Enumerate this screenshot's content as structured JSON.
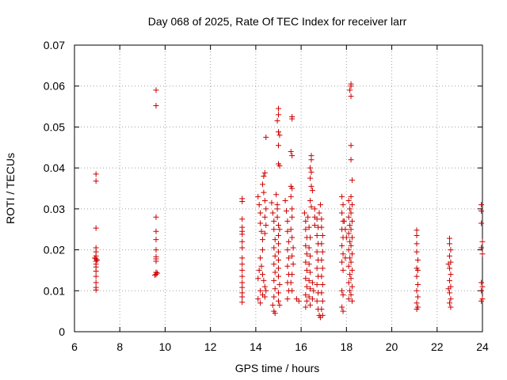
{
  "chart_data": {
    "type": "scatter",
    "title": "Day 068 of 2025, Rate Of TEC Index for receiver larr",
    "xlabel": "GPS time / hours",
    "ylabel": "ROTI / TECUs",
    "xlim": [
      6,
      24
    ],
    "ylim": [
      0,
      0.07
    ],
    "xticks": [
      6,
      8,
      10,
      12,
      14,
      16,
      18,
      20,
      22,
      24
    ],
    "yticks": [
      0,
      0.01,
      0.02,
      0.03,
      0.04,
      0.05,
      0.06,
      0.07
    ],
    "xtick_labels": [
      "6",
      "8",
      "10",
      "12",
      "14",
      "16",
      "18",
      "20",
      "22",
      "24"
    ],
    "ytick_labels": [
      "0",
      "0.01",
      "0.02",
      "0.03",
      "0.04",
      "0.05",
      "0.06",
      "0.07"
    ],
    "grid": true,
    "marker": "plus",
    "color": "#cc0000",
    "points": [
      [
        6.95,
        0.0385
      ],
      [
        6.95,
        0.0368
      ],
      [
        6.95,
        0.0253
      ],
      [
        6.95,
        0.0205
      ],
      [
        6.95,
        0.0195
      ],
      [
        6.95,
        0.0185
      ],
      [
        6.95,
        0.0178
      ],
      [
        6.95,
        0.0172
      ],
      [
        6.95,
        0.0165
      ],
      [
        6.95,
        0.0158
      ],
      [
        6.95,
        0.0148
      ],
      [
        6.95,
        0.0135
      ],
      [
        6.95,
        0.012
      ],
      [
        6.95,
        0.0108
      ],
      [
        6.95,
        0.0102
      ],
      [
        6.9,
        0.018
      ],
      [
        7.0,
        0.0175
      ],
      [
        9.6,
        0.059
      ],
      [
        9.6,
        0.0552
      ],
      [
        9.6,
        0.028
      ],
      [
        9.6,
        0.0245
      ],
      [
        9.6,
        0.0225
      ],
      [
        9.6,
        0.02
      ],
      [
        9.6,
        0.0183
      ],
      [
        9.6,
        0.0178
      ],
      [
        9.6,
        0.0172
      ],
      [
        9.6,
        0.0145
      ],
      [
        9.6,
        0.014
      ],
      [
        9.55,
        0.0138
      ],
      [
        9.65,
        0.0143
      ],
      [
        13.4,
        0.0325
      ],
      [
        13.4,
        0.0318
      ],
      [
        13.4,
        0.0275
      ],
      [
        13.4,
        0.0255
      ],
      [
        13.4,
        0.0245
      ],
      [
        13.4,
        0.0238
      ],
      [
        13.4,
        0.022
      ],
      [
        13.4,
        0.0205
      ],
      [
        13.4,
        0.018
      ],
      [
        13.4,
        0.0165
      ],
      [
        13.4,
        0.015
      ],
      [
        13.4,
        0.0135
      ],
      [
        13.4,
        0.012
      ],
      [
        13.4,
        0.0108
      ],
      [
        13.4,
        0.0095
      ],
      [
        13.4,
        0.0085
      ],
      [
        13.4,
        0.0072
      ],
      [
        14.1,
        0.033
      ],
      [
        14.15,
        0.031
      ],
      [
        14.2,
        0.029
      ],
      [
        14.2,
        0.0265
      ],
      [
        14.25,
        0.0245
      ],
      [
        14.3,
        0.0225
      ],
      [
        14.3,
        0.02
      ],
      [
        14.35,
        0.038
      ],
      [
        14.4,
        0.0388
      ],
      [
        14.3,
        0.036
      ],
      [
        14.35,
        0.034
      ],
      [
        14.2,
        0.018
      ],
      [
        14.25,
        0.016
      ],
      [
        14.3,
        0.014
      ],
      [
        14.35,
        0.0125
      ],
      [
        14.4,
        0.011
      ],
      [
        14.2,
        0.01
      ],
      [
        14.3,
        0.009
      ],
      [
        14.1,
        0.008
      ],
      [
        14.2,
        0.007
      ],
      [
        14.45,
        0.0475
      ],
      [
        14.4,
        0.032
      ],
      [
        14.45,
        0.03
      ],
      [
        14.4,
        0.028
      ],
      [
        14.45,
        0.026
      ],
      [
        14.4,
        0.024
      ],
      [
        14.45,
        0.01
      ],
      [
        14.4,
        0.0085
      ],
      [
        14.15,
        0.015
      ],
      [
        14.1,
        0.013
      ],
      [
        14.7,
        0.0315
      ],
      [
        14.75,
        0.029
      ],
      [
        14.8,
        0.027
      ],
      [
        14.8,
        0.025
      ],
      [
        14.85,
        0.0225
      ],
      [
        14.8,
        0.0205
      ],
      [
        14.85,
        0.0185
      ],
      [
        14.8,
        0.0165
      ],
      [
        14.85,
        0.0145
      ],
      [
        14.8,
        0.0125
      ],
      [
        14.85,
        0.0105
      ],
      [
        14.8,
        0.0085
      ],
      [
        14.75,
        0.0065
      ],
      [
        14.8,
        0.005
      ],
      [
        14.85,
        0.0045
      ],
      [
        14.9,
        0.0335
      ],
      [
        14.95,
        0.031
      ],
      [
        14.95,
        0.028
      ],
      [
        15.0,
        0.026
      ],
      [
        15.0,
        0.0235
      ],
      [
        15.0,
        0.0215
      ],
      [
        15.0,
        0.0195
      ],
      [
        15.0,
        0.0175
      ],
      [
        15.0,
        0.0155
      ],
      [
        15.0,
        0.0135
      ],
      [
        15.05,
        0.0115
      ],
      [
        15.0,
        0.0095
      ],
      [
        15.0,
        0.0075
      ],
      [
        15.05,
        0.0065
      ],
      [
        15.0,
        0.0545
      ],
      [
        15.0,
        0.053
      ],
      [
        14.95,
        0.0515
      ],
      [
        15.0,
        0.0488
      ],
      [
        15.05,
        0.048
      ],
      [
        15.0,
        0.0455
      ],
      [
        15.0,
        0.041
      ],
      [
        15.05,
        0.0405
      ],
      [
        14.95,
        0.03
      ],
      [
        15.05,
        0.025
      ],
      [
        15.3,
        0.032
      ],
      [
        15.35,
        0.0295
      ],
      [
        15.4,
        0.027
      ],
      [
        15.4,
        0.0245
      ],
      [
        15.45,
        0.022
      ],
      [
        15.4,
        0.02
      ],
      [
        15.45,
        0.018
      ],
      [
        15.4,
        0.016
      ],
      [
        15.45,
        0.014
      ],
      [
        15.4,
        0.012
      ],
      [
        15.45,
        0.01
      ],
      [
        15.4,
        0.008
      ],
      [
        15.6,
        0.0525
      ],
      [
        15.6,
        0.052
      ],
      [
        15.55,
        0.044
      ],
      [
        15.6,
        0.043
      ],
      [
        15.55,
        0.0355
      ],
      [
        15.6,
        0.035
      ],
      [
        15.55,
        0.033
      ],
      [
        15.6,
        0.03
      ],
      [
        15.6,
        0.028
      ],
      [
        15.55,
        0.025
      ],
      [
        15.6,
        0.023
      ],
      [
        15.65,
        0.0205
      ],
      [
        15.6,
        0.0185
      ],
      [
        15.65,
        0.0165
      ],
      [
        15.6,
        0.014
      ],
      [
        15.55,
        0.012
      ],
      [
        15.6,
        0.01
      ],
      [
        15.8,
        0.008
      ],
      [
        15.9,
        0.0075
      ],
      [
        16.15,
        0.029
      ],
      [
        16.2,
        0.027
      ],
      [
        16.2,
        0.025
      ],
      [
        16.25,
        0.023
      ],
      [
        16.2,
        0.021
      ],
      [
        16.25,
        0.019
      ],
      [
        16.2,
        0.017
      ],
      [
        16.25,
        0.015
      ],
      [
        16.2,
        0.013
      ],
      [
        16.25,
        0.011
      ],
      [
        16.2,
        0.009
      ],
      [
        16.25,
        0.0075
      ],
      [
        16.2,
        0.006
      ],
      [
        16.3,
        0.028
      ],
      [
        16.35,
        0.0255
      ],
      [
        16.4,
        0.023
      ],
      [
        16.35,
        0.0205
      ],
      [
        16.4,
        0.0185
      ],
      [
        16.35,
        0.0165
      ],
      [
        16.4,
        0.0145
      ],
      [
        16.35,
        0.0125
      ],
      [
        16.4,
        0.0105
      ],
      [
        16.35,
        0.0085
      ],
      [
        16.4,
        0.0065
      ],
      [
        16.45,
        0.043
      ],
      [
        16.45,
        0.042
      ],
      [
        16.4,
        0.04
      ],
      [
        16.45,
        0.039
      ],
      [
        16.4,
        0.0375
      ],
      [
        16.45,
        0.0355
      ],
      [
        16.5,
        0.0345
      ],
      [
        16.4,
        0.032
      ],
      [
        16.45,
        0.0305
      ],
      [
        16.5,
        0.012
      ],
      [
        16.55,
        0.01
      ],
      [
        16.5,
        0.008
      ],
      [
        16.7,
        0.0275
      ],
      [
        16.75,
        0.0255
      ],
      [
        16.7,
        0.0235
      ],
      [
        16.75,
        0.0215
      ],
      [
        16.7,
        0.0195
      ],
      [
        16.75,
        0.0175
      ],
      [
        16.7,
        0.0155
      ],
      [
        16.75,
        0.0135
      ],
      [
        16.7,
        0.0115
      ],
      [
        16.75,
        0.0095
      ],
      [
        16.7,
        0.0075
      ],
      [
        16.75,
        0.0055
      ],
      [
        16.8,
        0.004
      ],
      [
        16.85,
        0.0035
      ],
      [
        16.9,
        0.0275
      ],
      [
        16.9,
        0.0255
      ],
      [
        16.95,
        0.0235
      ],
      [
        16.9,
        0.0215
      ],
      [
        16.95,
        0.0195
      ],
      [
        16.9,
        0.0175
      ],
      [
        16.95,
        0.0155
      ],
      [
        16.9,
        0.0135
      ],
      [
        16.95,
        0.0115
      ],
      [
        16.9,
        0.0095
      ],
      [
        16.95,
        0.0075
      ],
      [
        16.9,
        0.0055
      ],
      [
        16.95,
        0.004
      ],
      [
        16.8,
        0.029
      ],
      [
        16.85,
        0.031
      ],
      [
        16.6,
        0.03
      ],
      [
        16.6,
        0.028
      ],
      [
        16.6,
        0.026
      ],
      [
        17.8,
        0.033
      ],
      [
        17.85,
        0.031
      ],
      [
        17.8,
        0.029
      ],
      [
        17.85,
        0.027
      ],
      [
        17.8,
        0.025
      ],
      [
        17.85,
        0.023
      ],
      [
        17.8,
        0.021
      ],
      [
        17.85,
        0.019
      ],
      [
        17.8,
        0.017
      ],
      [
        17.85,
        0.015
      ],
      [
        17.8,
        0.01
      ],
      [
        17.85,
        0.009
      ],
      [
        17.8,
        0.006
      ],
      [
        17.85,
        0.005
      ],
      [
        17.9,
        0.027
      ],
      [
        17.95,
        0.025
      ],
      [
        17.95,
        0.018
      ],
      [
        18.0,
        0.023
      ],
      [
        18.1,
        0.032
      ],
      [
        18.15,
        0.03
      ],
      [
        18.1,
        0.028
      ],
      [
        18.15,
        0.026
      ],
      [
        18.1,
        0.024
      ],
      [
        18.15,
        0.022
      ],
      [
        18.1,
        0.02
      ],
      [
        18.15,
        0.018
      ],
      [
        18.1,
        0.016
      ],
      [
        18.15,
        0.014
      ],
      [
        18.1,
        0.012
      ],
      [
        18.15,
        0.01
      ],
      [
        18.1,
        0.008
      ],
      [
        18.2,
        0.0605
      ],
      [
        18.2,
        0.06
      ],
      [
        18.15,
        0.059
      ],
      [
        18.2,
        0.0575
      ],
      [
        18.2,
        0.0455
      ],
      [
        18.2,
        0.042
      ],
      [
        18.25,
        0.037
      ],
      [
        18.2,
        0.033
      ],
      [
        18.25,
        0.031
      ],
      [
        18.2,
        0.029
      ],
      [
        18.25,
        0.027
      ],
      [
        18.2,
        0.025
      ],
      [
        18.25,
        0.023
      ],
      [
        18.2,
        0.021
      ],
      [
        18.25,
        0.019
      ],
      [
        18.2,
        0.017
      ],
      [
        18.25,
        0.015
      ],
      [
        18.2,
        0.013
      ],
      [
        18.25,
        0.011
      ],
      [
        18.2,
        0.009
      ],
      [
        18.25,
        0.0075
      ],
      [
        21.1,
        0.0248
      ],
      [
        21.1,
        0.0235
      ],
      [
        21.1,
        0.0215
      ],
      [
        21.1,
        0.0195
      ],
      [
        21.15,
        0.0175
      ],
      [
        21.1,
        0.0155
      ],
      [
        21.15,
        0.015
      ],
      [
        21.1,
        0.0135
      ],
      [
        21.15,
        0.0115
      ],
      [
        21.1,
        0.01
      ],
      [
        21.15,
        0.0085
      ],
      [
        21.1,
        0.007
      ],
      [
        21.15,
        0.006
      ],
      [
        21.1,
        0.0055
      ],
      [
        22.55,
        0.0228
      ],
      [
        22.55,
        0.0215
      ],
      [
        22.6,
        0.02
      ],
      [
        22.55,
        0.0185
      ],
      [
        22.6,
        0.017
      ],
      [
        22.55,
        0.0155
      ],
      [
        22.6,
        0.014
      ],
      [
        22.55,
        0.0125
      ],
      [
        22.6,
        0.011
      ],
      [
        22.55,
        0.0095
      ],
      [
        22.6,
        0.008
      ],
      [
        22.55,
        0.007
      ],
      [
        22.6,
        0.006
      ],
      [
        22.5,
        0.0165
      ],
      [
        22.5,
        0.0105
      ],
      [
        23.95,
        0.031
      ],
      [
        23.95,
        0.0295
      ],
      [
        23.95,
        0.0265
      ],
      [
        24.0,
        0.022
      ],
      [
        23.95,
        0.0205
      ],
      [
        24.0,
        0.019
      ],
      [
        23.95,
        0.012
      ],
      [
        24.0,
        0.011
      ],
      [
        23.95,
        0.01
      ],
      [
        24.0,
        0.008
      ],
      [
        23.95,
        0.0075
      ]
    ]
  }
}
